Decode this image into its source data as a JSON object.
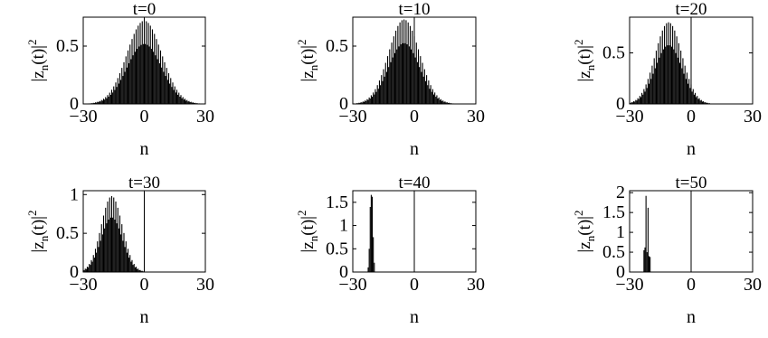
{
  "chart_data": [
    {
      "type": "bar",
      "title": "t=0",
      "xlabel": "n",
      "ylabel": "|zn(t)|2",
      "xlim": [
        -30,
        30
      ],
      "ylim": [
        0,
        0.75
      ],
      "xticks": [
        "−30",
        "0",
        "30"
      ],
      "yticks": [
        {
          "value": 0,
          "label": "0"
        },
        {
          "value": 0.5,
          "label": "0.5"
        }
      ],
      "marker_line_x": null,
      "envelope": {
        "shape": "gaussian",
        "center": 0,
        "width": 8.5,
        "peak": 0.72
      },
      "n_step": 0.5,
      "oscillation": "alternate"
    },
    {
      "type": "bar",
      "title": "t=10",
      "xlabel": "n",
      "ylabel": "|zn(t)|2",
      "xlim": [
        -30,
        30
      ],
      "ylim": [
        0,
        0.75
      ],
      "xticks": [
        "−30",
        "0",
        "30"
      ],
      "yticks": [
        {
          "value": 0,
          "label": "0"
        },
        {
          "value": 0.5,
          "label": "0.5"
        }
      ],
      "marker_line_x": 0,
      "envelope": {
        "shape": "gaussian",
        "center": -5,
        "width": 7.5,
        "peak": 0.73
      },
      "n_step": 0.5,
      "oscillation": "alternate"
    },
    {
      "type": "bar",
      "title": "t=20",
      "xlabel": "n",
      "ylabel": "|zn(t)|2",
      "xlim": [
        -30,
        30
      ],
      "ylim": [
        0,
        0.85
      ],
      "xticks": [
        "−30",
        "0",
        "30"
      ],
      "yticks": [
        {
          "value": 0,
          "label": "0"
        },
        {
          "value": 0.5,
          "label": "0.5"
        }
      ],
      "marker_line_x": 0,
      "envelope": {
        "shape": "gaussian",
        "center": -11,
        "width": 6.5,
        "peak": 0.8
      },
      "n_step": 0.5,
      "oscillation": "alternate"
    },
    {
      "type": "bar",
      "title": "t=30",
      "xlabel": "n",
      "ylabel": "|zn(t)|2",
      "xlim": [
        -30,
        30
      ],
      "ylim": [
        0,
        1.05
      ],
      "xticks": [
        "−30",
        "0",
        "30"
      ],
      "yticks": [
        {
          "value": 0,
          "label": "0"
        },
        {
          "value": 0.5,
          "label": "0.5"
        },
        {
          "value": 1,
          "label": "1"
        }
      ],
      "marker_line_x": 0,
      "envelope": {
        "shape": "gaussian",
        "center": -16,
        "width": 5.2,
        "peak": 0.98
      },
      "n_step": 0.5,
      "oscillation": "alternate"
    },
    {
      "type": "bar",
      "title": "t=40",
      "xlabel": "n",
      "ylabel": "|zn(t)|2",
      "xlim": [
        -30,
        30
      ],
      "ylim": [
        0,
        1.75
      ],
      "xticks": [
        "−30",
        "0",
        "30"
      ],
      "yticks": [
        {
          "value": 0,
          "label": "0"
        },
        {
          "value": 0.5,
          "label": "0.5"
        },
        {
          "value": 1,
          "label": "1"
        },
        {
          "value": 1.5,
          "label": "1.5"
        }
      ],
      "marker_line_x": 0,
      "bars": [
        {
          "n": -22.5,
          "v": 0.1
        },
        {
          "n": -22,
          "v": 0.5
        },
        {
          "n": -21.5,
          "v": 1.4
        },
        {
          "n": -21,
          "v": 1.66
        },
        {
          "n": -20.5,
          "v": 1.62
        },
        {
          "n": -20,
          "v": 0.75
        },
        {
          "n": -19.5,
          "v": 0.2
        }
      ]
    },
    {
      "type": "bar",
      "title": "t=50",
      "xlabel": "n",
      "ylabel": "|zn(t)|2",
      "xlim": [
        -30,
        30
      ],
      "ylim": [
        0,
        2.05
      ],
      "xticks": [
        "−30",
        "0",
        "30"
      ],
      "yticks": [
        {
          "value": 0,
          "label": "0"
        },
        {
          "value": 0.5,
          "label": "0.5"
        },
        {
          "value": 1,
          "label": "1"
        },
        {
          "value": 1.5,
          "label": "1.5"
        },
        {
          "value": 2,
          "label": "2"
        }
      ],
      "marker_line_x": 0,
      "bars": [
        {
          "n": -23,
          "v": 0.55
        },
        {
          "n": -22.5,
          "v": 0.62
        },
        {
          "n": -22,
          "v": 1.92
        },
        {
          "n": -21.5,
          "v": 0.5
        },
        {
          "n": -21,
          "v": 1.62
        },
        {
          "n": -20.5,
          "v": 0.4
        },
        {
          "n": -20,
          "v": 0.38
        }
      ]
    }
  ]
}
